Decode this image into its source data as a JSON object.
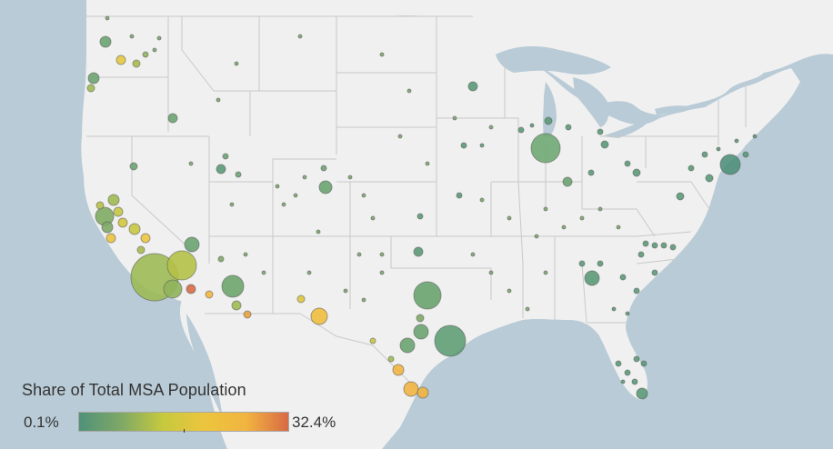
{
  "legend": {
    "title": "Share of Total MSA Population",
    "min_label": "0.1%",
    "max_label": "32.4%",
    "min_value": 0.1,
    "max_value": 32.4,
    "gradient": [
      "#50917a",
      "#7ea866",
      "#c6c93e",
      "#ecc53e",
      "#f2b440",
      "#d86a45"
    ]
  },
  "colors": {
    "water": "#b9cbd6",
    "land": "#f0f0f0",
    "border": "#c9c9c9",
    "bubble_stroke": "#5a5a5a"
  },
  "bubbles": [
    {
      "name": "los-angeles",
      "share": 12.0,
      "color": "#9dba56"
    },
    {
      "name": "chicago",
      "share": 6.0,
      "color": "#6fa874"
    },
    {
      "name": "houston",
      "share": 6.5,
      "color": "#5f9e76"
    },
    {
      "name": "dallas",
      "share": 6.0,
      "color": "#6aa36e"
    },
    {
      "name": "riverside",
      "share": 11.0,
      "color": "#b5c147"
    },
    {
      "name": "new-york",
      "share": 2.0,
      "color": "#4f917b"
    },
    {
      "name": "phoenix",
      "share": 6.0,
      "color": "#6da56c"
    },
    {
      "name": "san-jose",
      "share": 7.0,
      "color": "#7fab63"
    },
    {
      "name": "san-diego",
      "share": 8.0,
      "color": "#8fb35b"
    },
    {
      "name": "el-paso",
      "share": 22.0,
      "color": "#efbe3f"
    },
    {
      "name": "mcallen",
      "share": 25.0,
      "color": "#f2b440"
    }
  ]
}
